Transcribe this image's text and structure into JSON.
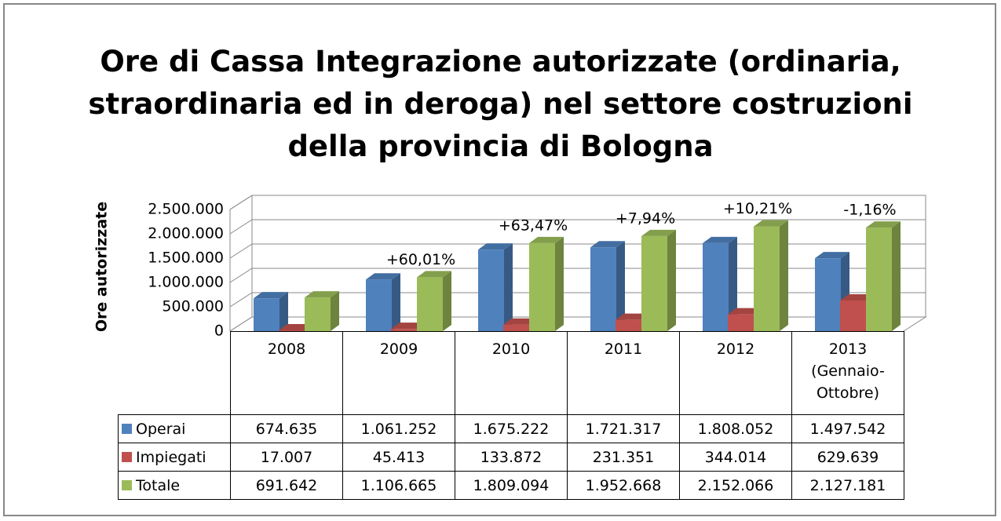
{
  "chart_data": {
    "type": "bar3d",
    "title": "Ore di Cassa Integrazione autorizzate (ordinaria, straordinaria ed in deroga) nel settore costruzioni della provincia di Bologna",
    "y_axis_label": "Ore autorizzate",
    "categories": [
      "2008",
      "2009",
      "2010",
      "2011",
      "2012",
      "2013 (Gennaio-Ottobre)"
    ],
    "series": [
      {
        "name": "Operai",
        "color": "#4f81bd",
        "values": [
          674635,
          1061252,
          1675222,
          1721317,
          1808052,
          1497542
        ],
        "value_labels": [
          "674.635",
          "1.061.252",
          "1.675.222",
          "1.721.317",
          "1.808.052",
          "1.497.542"
        ]
      },
      {
        "name": "Impiegati",
        "color": "#c0504d",
        "values": [
          17007,
          45413,
          133872,
          231351,
          344014,
          629639
        ],
        "value_labels": [
          "17.007",
          "45.413",
          "133.872",
          "231.351",
          "344.014",
          "629.639"
        ]
      },
      {
        "name": "Totale",
        "color": "#9bbb59",
        "values": [
          691642,
          1106665,
          1809094,
          1952668,
          2152066,
          2127181
        ],
        "value_labels": [
          "691.642",
          "1.106.665",
          "1.809.094",
          "1.952.668",
          "2.152.066",
          "2.127.181"
        ]
      }
    ],
    "annotations": [
      null,
      "+60,01%",
      "+63,47%",
      "+7,94%",
      "+10,21%",
      "-1,16%"
    ],
    "ylim": [
      0,
      2500000
    ],
    "yticks": [
      {
        "value": 0,
        "label": "0"
      },
      {
        "value": 500000,
        "label": "500.000"
      },
      {
        "value": 1000000,
        "label": "1.000.000"
      },
      {
        "value": 1500000,
        "label": "1.500.000"
      },
      {
        "value": 2000000,
        "label": "2.000.000"
      },
      {
        "value": 2500000,
        "label": "2.500.000"
      }
    ],
    "grid": true
  }
}
